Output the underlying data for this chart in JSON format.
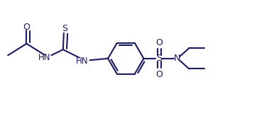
{
  "bg_color": "#ffffff",
  "line_color": "#1a1a5e",
  "line_width": 1.5,
  "font_size": 8.5,
  "figsize": [
    3.86,
    1.6
  ],
  "dpi": 100,
  "xlim": [
    0,
    11
  ],
  "ylim": [
    0,
    4.2
  ]
}
